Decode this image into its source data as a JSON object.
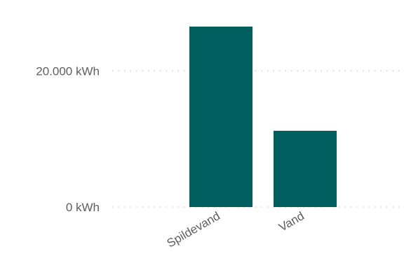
{
  "chart_data": {
    "type": "bar",
    "categories": [
      "Spildevand",
      "Vand"
    ],
    "values": [
      26500,
      11200
    ],
    "y_ticks": [
      {
        "value": 0,
        "label": "0 kWh"
      },
      {
        "value": 20000,
        "label": "20.000 kWh"
      }
    ],
    "ylim": [
      0,
      26500
    ],
    "grid": true,
    "bar_color": "#005e5e",
    "title": "",
    "xlabel": "",
    "ylabel": ""
  }
}
